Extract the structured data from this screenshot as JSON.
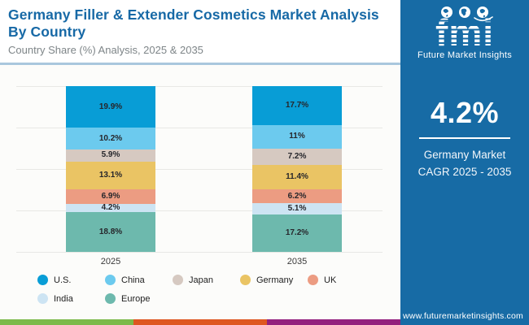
{
  "chart_data": {
    "type": "bar",
    "stacked": true,
    "title": "Germany Filler & Extender Cosmetics Market Analysis By Country",
    "subtitle": "Country Share (%) Analysis, 2025 & 2035",
    "categories": [
      "2025",
      "2035"
    ],
    "series": [
      {
        "name": "U.S.",
        "color": "#089DD6",
        "values": [
          19.9,
          17.7
        ],
        "labels": [
          "19.9%",
          "17.7%"
        ]
      },
      {
        "name": "China",
        "color": "#6CCAEE",
        "values": [
          10.2,
          11.0
        ],
        "labels": [
          "10.2%",
          "11%"
        ]
      },
      {
        "name": "Japan",
        "color": "#D6C9C1",
        "values": [
          5.9,
          7.2
        ],
        "labels": [
          "5.9%",
          "7.2%"
        ]
      },
      {
        "name": "Germany",
        "color": "#EAC464",
        "values": [
          13.1,
          11.4
        ],
        "labels": [
          "13.1%",
          "11.4%"
        ]
      },
      {
        "name": "UK",
        "color": "#EC9C82",
        "values": [
          6.9,
          6.2
        ],
        "labels": [
          "6.9%",
          "6.2%"
        ]
      },
      {
        "name": "India",
        "color": "#CDE4F3",
        "values": [
          4.2,
          5.1
        ],
        "labels": [
          "4.2%",
          "5.1%"
        ]
      },
      {
        "name": "Europe",
        "color": "#6DB9AD",
        "values": [
          18.8,
          17.2
        ],
        "labels": [
          "18.8%",
          "17.2%"
        ]
      }
    ],
    "xlabel": "",
    "ylabel": "",
    "grid": true,
    "legend_position": "bottom"
  },
  "sidebar": {
    "logo_text": "fmi",
    "logo_subtext": "Future Market Insights",
    "cagr_value": "4.2%",
    "cagr_label_line1": "Germany Market",
    "cagr_label_line2": "CAGR 2025 - 2035",
    "website": "www.futuremarketinsights.com",
    "bg_color": "#176BA5"
  },
  "footer_strip": {
    "colors": [
      "#7CBA4A",
      "#DE5720",
      "#93207D"
    ]
  }
}
